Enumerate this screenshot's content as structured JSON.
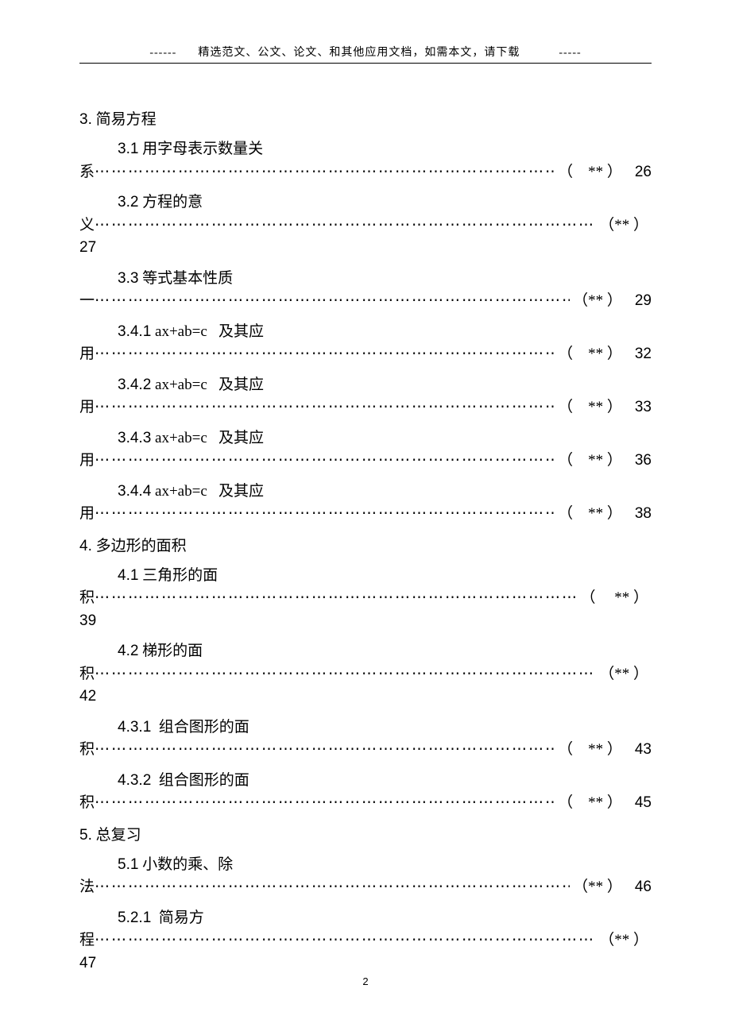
{
  "header": {
    "prefix": "------",
    "text": "精选范文、公文、论文、和其他应用文档，如需本文，请下载",
    "suffix": "-----"
  },
  "sections": [
    {
      "heading_num": "3.",
      "heading_text": "简易方程",
      "entries": [
        {
          "num": "3.1",
          "title_line1": "用字母表示数量关",
          "wrap_char": "系",
          "marker": "（    ** ）",
          "page": "26",
          "page_inline": true,
          "dots_before_marker": true
        },
        {
          "num": "3.2",
          "title_line1": "方程的意",
          "wrap_char": "义",
          "marker": "（** ）",
          "page": "27",
          "page_inline": false,
          "dots_before_marker": true
        },
        {
          "num": "3.3",
          "title_line1": "等式基本性质",
          "wrap_char": "一",
          "marker": "（** ）",
          "page": "29",
          "page_inline": true,
          "dots_before_marker": true
        },
        {
          "num": "3.4.1",
          "title_line1": "ax+ab=c   及其应",
          "wrap_char": "用",
          "marker": "（    ** ）",
          "page": "32",
          "page_inline": true,
          "dots_before_marker": true
        },
        {
          "num": "3.4.2",
          "title_line1": "ax+ab=c   及其应",
          "wrap_char": "用",
          "marker": "（    ** ）",
          "page": "33",
          "page_inline": true,
          "dots_before_marker": true
        },
        {
          "num": "3.4.3",
          "title_line1": "ax+ab=c   及其应",
          "wrap_char": "用",
          "marker": "（    ** ）",
          "page": "36",
          "page_inline": true,
          "dots_before_marker": true
        },
        {
          "num": "3.4.4",
          "title_line1": "ax+ab=c   及其应",
          "wrap_char": "用",
          "marker": "（    ** ）",
          "page": "38",
          "page_inline": true,
          "dots_before_marker": true
        }
      ]
    },
    {
      "heading_num": "4.",
      "heading_text": "多边形的面积",
      "entries": [
        {
          "num": "4.1",
          "title_line1": "三角形的面",
          "wrap_char": "积",
          "marker": "（     ** ）",
          "page": "39",
          "page_inline": false,
          "dots_before_marker": true
        },
        {
          "num": "4.2",
          "title_line1": "梯形的面",
          "wrap_char": "积",
          "marker": "（** ）",
          "page": "42",
          "page_inline": false,
          "dots_before_marker": true
        },
        {
          "num": "4.3.1",
          "title_line1": " 组合图形的面",
          "wrap_char": "积",
          "marker": "（    ** ）",
          "page": "43",
          "page_inline": true,
          "dots_before_marker": true
        },
        {
          "num": "4.3.2",
          "title_line1": " 组合图形的面",
          "wrap_char": "积",
          "marker": "（    ** ）",
          "page": "45",
          "page_inline": true,
          "dots_before_marker": true
        }
      ]
    },
    {
      "heading_num": "5.",
      "heading_text": "总复习",
      "entries": [
        {
          "num": "5.1",
          "title_line1": "小数的乘、除",
          "wrap_char": "法",
          "marker": "（** ）",
          "page": "46",
          "page_inline": true,
          "dots_before_marker": true
        },
        {
          "num": "5.2.1",
          "title_line1": " 简易方",
          "wrap_char": "程",
          "marker": "（** ）",
          "page": "47",
          "page_inline": false,
          "dots_before_marker": true
        }
      ]
    }
  ],
  "footer": {
    "page_number": "2"
  },
  "dots_fill": "⋯⋯⋯⋯⋯⋯⋯⋯⋯⋯⋯⋯⋯⋯⋯⋯⋯⋯⋯⋯⋯⋯⋯⋯⋯⋯⋯⋯⋯⋯⋯⋯⋯⋯⋯⋯⋯⋯⋯⋯⋯⋯⋯⋯⋯⋯⋯⋯⋯⋯⋯⋯⋯⋯⋯⋯⋯⋯⋯⋯⋯⋯⋯⋯⋯⋯⋯⋯⋯⋯⋯⋯⋯⋯⋯⋯⋯⋯⋯⋯"
}
